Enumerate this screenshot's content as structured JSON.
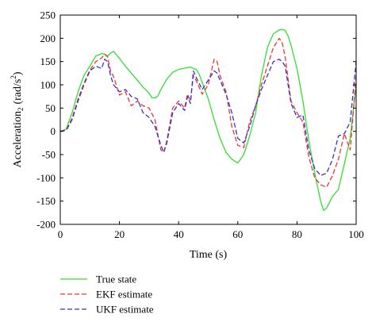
{
  "chart_data": {
    "type": "line",
    "title": "",
    "xlabel": "Time (s)",
    "ylabel": "Acceleration",
    "ylabel_sub": "2",
    "ylabel_unit": "(rad/s",
    "ylabel_unit_sup": "2",
    "ylabel_unit_close": ")",
    "xlim": [
      0,
      100
    ],
    "ylim": [
      -200,
      250
    ],
    "xticks": [
      0,
      20,
      40,
      60,
      80,
      100
    ],
    "yticks": [
      -200,
      -150,
      -100,
      -50,
      0,
      50,
      100,
      150,
      200,
      250
    ],
    "grid": false,
    "legend_position": "bottom-left, below plot",
    "series": [
      {
        "name": "True state",
        "color": "#33dd33",
        "dash": "solid",
        "x": [
          0,
          2,
          4,
          6,
          8,
          10,
          12,
          14,
          15,
          16,
          17,
          18,
          20,
          22,
          24,
          26,
          28,
          30,
          31,
          32,
          33,
          34,
          36,
          38,
          40,
          42,
          44,
          45,
          46,
          47,
          48,
          50,
          52,
          54,
          56,
          58,
          60,
          62,
          64,
          66,
          68,
          70,
          72,
          74,
          75,
          76,
          77,
          78,
          80,
          82,
          84,
          86,
          88,
          89,
          90,
          92,
          94,
          96,
          98,
          100
        ],
        "y": [
          0,
          5,
          40,
          85,
          120,
          140,
          162,
          167,
          166,
          162,
          168,
          172,
          157,
          140,
          125,
          110,
          95,
          82,
          72,
          72,
          76,
          90,
          112,
          127,
          133,
          136,
          138,
          135,
          133,
          122,
          105,
          70,
          25,
          -15,
          -45,
          -60,
          -68,
          -50,
          -10,
          40,
          120,
          180,
          210,
          218,
          219,
          217,
          205,
          185,
          135,
          65,
          -20,
          -90,
          -150,
          -170,
          -165,
          -140,
          -125,
          -70,
          -15,
          100
        ]
      },
      {
        "name": "EKF estimate",
        "color": "#ee3333",
        "dash": "dashed",
        "x": [
          0,
          2,
          4,
          6,
          8,
          10,
          12,
          14,
          15,
          16,
          17,
          18,
          20,
          22,
          24,
          26,
          28,
          30,
          32,
          34,
          35,
          36,
          38,
          40,
          42,
          43,
          44,
          45,
          46,
          48,
          50,
          52,
          53,
          54,
          56,
          58,
          60,
          62,
          64,
          66,
          68,
          70,
          72,
          74,
          75,
          76,
          78,
          80,
          82,
          84,
          86,
          88,
          90,
          92,
          94,
          96,
          98,
          100
        ],
        "y": [
          0,
          3,
          28,
          70,
          103,
          132,
          150,
          158,
          166,
          160,
          130,
          118,
          78,
          85,
          55,
          65,
          55,
          50,
          25,
          -40,
          -45,
          -20,
          50,
          65,
          50,
          80,
          65,
          120,
          108,
          80,
          100,
          155,
          150,
          120,
          85,
          10,
          -30,
          -35,
          20,
          55,
          100,
          140,
          180,
          200,
          190,
          160,
          65,
          40,
          20,
          -55,
          -100,
          -115,
          -120,
          -95,
          -60,
          -5,
          -40,
          120
        ]
      },
      {
        "name": "UKF estimate",
        "color": "#3333cc",
        "dash": "dashed",
        "x": [
          0,
          2,
          4,
          6,
          8,
          10,
          12,
          14,
          15,
          16,
          17,
          18,
          20,
          22,
          24,
          26,
          28,
          30,
          32,
          34,
          35,
          36,
          38,
          40,
          42,
          43,
          44,
          45,
          46,
          48,
          50,
          52,
          53,
          54,
          56,
          58,
          60,
          62,
          64,
          66,
          68,
          70,
          72,
          74,
          75,
          76,
          78,
          80,
          82,
          84,
          86,
          88,
          90,
          92,
          94,
          96,
          98,
          100
        ],
        "y": [
          0,
          2,
          25,
          65,
          100,
          130,
          140,
          135,
          155,
          150,
          120,
          100,
          85,
          90,
          75,
          70,
          40,
          30,
          10,
          -30,
          -45,
          -25,
          40,
          60,
          45,
          75,
          60,
          130,
          115,
          90,
          110,
          130,
          125,
          110,
          80,
          40,
          -15,
          -25,
          10,
          55,
          90,
          120,
          150,
          155,
          150,
          140,
          60,
          30,
          35,
          -40,
          -80,
          -95,
          -90,
          -60,
          -10,
          -5,
          20,
          150
        ]
      }
    ]
  }
}
